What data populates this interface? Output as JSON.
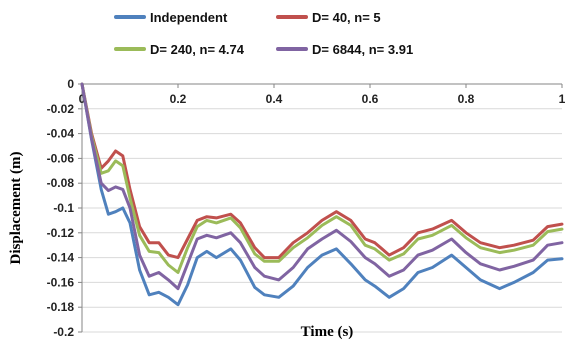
{
  "chart_data": {
    "type": "line",
    "xlabel": "Time (s)",
    "ylabel": "Displacement (m)",
    "xlim": [
      0,
      1
    ],
    "ylim": [
      -0.2,
      0
    ],
    "x_ticks": [
      0,
      0.2,
      0.4,
      0.6,
      0.8,
      1
    ],
    "x_tick_labels": [
      "0",
      "0.2",
      "0.4",
      "0.6",
      "0.8",
      "1"
    ],
    "y_ticks": [
      0,
      -0.02,
      -0.04,
      -0.06,
      -0.08,
      -0.1,
      -0.12,
      -0.14,
      -0.16,
      -0.18,
      -0.2
    ],
    "y_tick_labels": [
      "0",
      "-0.02",
      "-0.04",
      "-0.06",
      "-0.08",
      "-0.1",
      "-0.12",
      "-0.14",
      "-0.16",
      "-0.18",
      "-0.2"
    ],
    "grid": "horizontal",
    "legend_position": "top",
    "series": [
      {
        "name": "Independent",
        "color": "#4f81bd",
        "points": [
          [
            0,
            0
          ],
          [
            0.02,
            -0.045
          ],
          [
            0.04,
            -0.085
          ],
          [
            0.055,
            -0.105
          ],
          [
            0.07,
            -0.103
          ],
          [
            0.085,
            -0.1
          ],
          [
            0.1,
            -0.112
          ],
          [
            0.12,
            -0.15
          ],
          [
            0.14,
            -0.17
          ],
          [
            0.16,
            -0.168
          ],
          [
            0.18,
            -0.172
          ],
          [
            0.2,
            -0.178
          ],
          [
            0.22,
            -0.162
          ],
          [
            0.24,
            -0.14
          ],
          [
            0.26,
            -0.135
          ],
          [
            0.28,
            -0.14
          ],
          [
            0.31,
            -0.133
          ],
          [
            0.33,
            -0.142
          ],
          [
            0.36,
            -0.164
          ],
          [
            0.38,
            -0.17
          ],
          [
            0.41,
            -0.172
          ],
          [
            0.44,
            -0.163
          ],
          [
            0.47,
            -0.148
          ],
          [
            0.5,
            -0.138
          ],
          [
            0.53,
            -0.133
          ],
          [
            0.56,
            -0.145
          ],
          [
            0.59,
            -0.158
          ],
          [
            0.61,
            -0.163
          ],
          [
            0.64,
            -0.172
          ],
          [
            0.67,
            -0.165
          ],
          [
            0.7,
            -0.152
          ],
          [
            0.73,
            -0.148
          ],
          [
            0.77,
            -0.138
          ],
          [
            0.8,
            -0.148
          ],
          [
            0.83,
            -0.158
          ],
          [
            0.87,
            -0.165
          ],
          [
            0.9,
            -0.16
          ],
          [
            0.94,
            -0.152
          ],
          [
            0.97,
            -0.142
          ],
          [
            1,
            -0.141
          ]
        ]
      },
      {
        "name": "D= 40, n= 5",
        "color": "#c0504d",
        "points": [
          [
            0,
            0
          ],
          [
            0.02,
            -0.04
          ],
          [
            0.04,
            -0.068
          ],
          [
            0.055,
            -0.062
          ],
          [
            0.07,
            -0.054
          ],
          [
            0.085,
            -0.058
          ],
          [
            0.1,
            -0.085
          ],
          [
            0.12,
            -0.115
          ],
          [
            0.14,
            -0.128
          ],
          [
            0.16,
            -0.128
          ],
          [
            0.18,
            -0.138
          ],
          [
            0.2,
            -0.14
          ],
          [
            0.22,
            -0.125
          ],
          [
            0.24,
            -0.11
          ],
          [
            0.26,
            -0.107
          ],
          [
            0.28,
            -0.108
          ],
          [
            0.31,
            -0.105
          ],
          [
            0.33,
            -0.112
          ],
          [
            0.36,
            -0.132
          ],
          [
            0.38,
            -0.14
          ],
          [
            0.41,
            -0.14
          ],
          [
            0.44,
            -0.128
          ],
          [
            0.47,
            -0.12
          ],
          [
            0.5,
            -0.11
          ],
          [
            0.53,
            -0.103
          ],
          [
            0.56,
            -0.11
          ],
          [
            0.59,
            -0.125
          ],
          [
            0.61,
            -0.128
          ],
          [
            0.64,
            -0.138
          ],
          [
            0.67,
            -0.132
          ],
          [
            0.7,
            -0.12
          ],
          [
            0.73,
            -0.117
          ],
          [
            0.77,
            -0.11
          ],
          [
            0.8,
            -0.12
          ],
          [
            0.83,
            -0.128
          ],
          [
            0.87,
            -0.132
          ],
          [
            0.9,
            -0.13
          ],
          [
            0.94,
            -0.126
          ],
          [
            0.97,
            -0.115
          ],
          [
            1,
            -0.113
          ]
        ]
      },
      {
        "name": "D= 240, n= 4.74",
        "color": "#9bbb59",
        "points": [
          [
            0,
            0
          ],
          [
            0.02,
            -0.042
          ],
          [
            0.04,
            -0.072
          ],
          [
            0.055,
            -0.07
          ],
          [
            0.07,
            -0.062
          ],
          [
            0.085,
            -0.066
          ],
          [
            0.1,
            -0.092
          ],
          [
            0.12,
            -0.122
          ],
          [
            0.14,
            -0.135
          ],
          [
            0.16,
            -0.136
          ],
          [
            0.18,
            -0.146
          ],
          [
            0.2,
            -0.152
          ],
          [
            0.22,
            -0.132
          ],
          [
            0.24,
            -0.115
          ],
          [
            0.26,
            -0.11
          ],
          [
            0.28,
            -0.112
          ],
          [
            0.31,
            -0.108
          ],
          [
            0.33,
            -0.116
          ],
          [
            0.36,
            -0.137
          ],
          [
            0.38,
            -0.143
          ],
          [
            0.41,
            -0.143
          ],
          [
            0.44,
            -0.132
          ],
          [
            0.47,
            -0.124
          ],
          [
            0.5,
            -0.114
          ],
          [
            0.53,
            -0.107
          ],
          [
            0.56,
            -0.114
          ],
          [
            0.59,
            -0.13
          ],
          [
            0.61,
            -0.133
          ],
          [
            0.64,
            -0.142
          ],
          [
            0.67,
            -0.137
          ],
          [
            0.7,
            -0.125
          ],
          [
            0.73,
            -0.122
          ],
          [
            0.77,
            -0.114
          ],
          [
            0.8,
            -0.124
          ],
          [
            0.83,
            -0.132
          ],
          [
            0.87,
            -0.136
          ],
          [
            0.9,
            -0.134
          ],
          [
            0.94,
            -0.13
          ],
          [
            0.97,
            -0.119
          ],
          [
            1,
            -0.117
          ]
        ]
      },
      {
        "name": "D= 6844, n= 3.91",
        "color": "#8064a2",
        "points": [
          [
            0,
            0
          ],
          [
            0.02,
            -0.044
          ],
          [
            0.04,
            -0.08
          ],
          [
            0.055,
            -0.086
          ],
          [
            0.07,
            -0.083
          ],
          [
            0.085,
            -0.085
          ],
          [
            0.1,
            -0.1
          ],
          [
            0.12,
            -0.138
          ],
          [
            0.14,
            -0.155
          ],
          [
            0.16,
            -0.152
          ],
          [
            0.18,
            -0.158
          ],
          [
            0.2,
            -0.165
          ],
          [
            0.22,
            -0.145
          ],
          [
            0.24,
            -0.125
          ],
          [
            0.26,
            -0.122
          ],
          [
            0.28,
            -0.124
          ],
          [
            0.31,
            -0.12
          ],
          [
            0.33,
            -0.128
          ],
          [
            0.36,
            -0.148
          ],
          [
            0.38,
            -0.155
          ],
          [
            0.41,
            -0.158
          ],
          [
            0.44,
            -0.148
          ],
          [
            0.47,
            -0.133
          ],
          [
            0.5,
            -0.125
          ],
          [
            0.53,
            -0.118
          ],
          [
            0.56,
            -0.127
          ],
          [
            0.59,
            -0.14
          ],
          [
            0.61,
            -0.145
          ],
          [
            0.64,
            -0.155
          ],
          [
            0.67,
            -0.15
          ],
          [
            0.7,
            -0.138
          ],
          [
            0.73,
            -0.134
          ],
          [
            0.77,
            -0.125
          ],
          [
            0.8,
            -0.136
          ],
          [
            0.83,
            -0.145
          ],
          [
            0.87,
            -0.15
          ],
          [
            0.9,
            -0.147
          ],
          [
            0.94,
            -0.142
          ],
          [
            0.97,
            -0.13
          ],
          [
            1,
            -0.128
          ]
        ]
      }
    ]
  }
}
